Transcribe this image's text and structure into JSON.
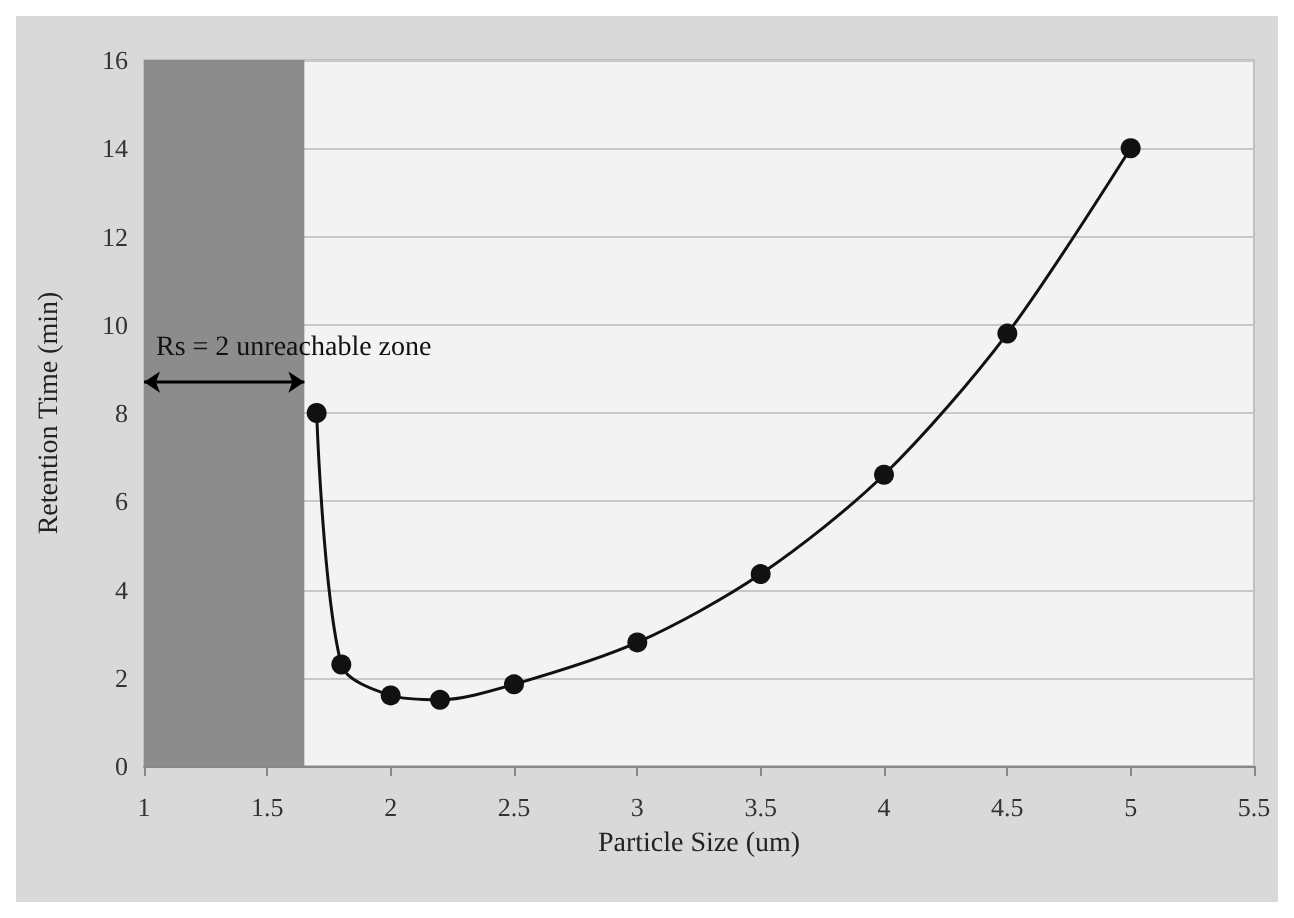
{
  "chart_data": {
    "type": "line",
    "xlabel": "Particle Size (um)",
    "ylabel": "Retention Time (min)",
    "x": [
      1.7,
      1.8,
      2.0,
      2.2,
      2.5,
      3.0,
      3.5,
      4.0,
      4.5,
      5.0
    ],
    "series": [
      {
        "color": "#111111",
        "values": [
          8.0,
          2.3,
          1.6,
          1.5,
          1.85,
          2.8,
          4.35,
          6.6,
          9.8,
          14.0
        ]
      }
    ],
    "xlim": [
      1,
      5.5
    ],
    "xticks": [
      1,
      1.5,
      2,
      2.5,
      3,
      3.5,
      4,
      4.5,
      5,
      5.5
    ],
    "ylim": [
      0,
      16
    ],
    "yticks": [
      0,
      2,
      4,
      6,
      8,
      10,
      12,
      14,
      16
    ],
    "bands": [
      {
        "axis": "x",
        "from": 1,
        "to": 1.65,
        "color": "#8c8c8c"
      }
    ],
    "annotations": [
      {
        "text": "Rs = 2 unreachable zone",
        "x": 1,
        "y": 8.7
      }
    ],
    "grid": "y",
    "marker": "circle",
    "line_style": "solid"
  }
}
